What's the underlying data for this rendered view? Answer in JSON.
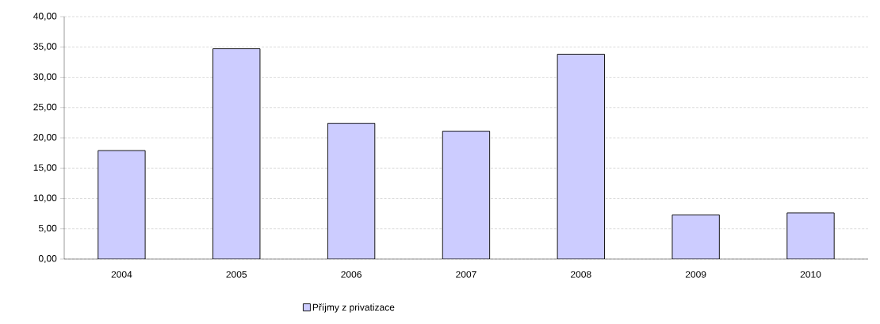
{
  "chart_data": {
    "type": "bar",
    "categories": [
      "2004",
      "2005",
      "2006",
      "2007",
      "2008",
      "2009",
      "2010"
    ],
    "series": [
      {
        "name": "Příjmy z privatizace",
        "color": "#ccccff",
        "values": [
          17.9,
          34.7,
          22.4,
          21.1,
          33.8,
          7.3,
          7.6
        ]
      }
    ],
    "ylim": [
      0,
      40
    ],
    "yticks": [
      {
        "value": 0,
        "label": "0,00"
      },
      {
        "value": 5,
        "label": "5,00"
      },
      {
        "value": 10,
        "label": "10,00"
      },
      {
        "value": 15,
        "label": "15,00"
      },
      {
        "value": 20,
        "label": "20,00"
      },
      {
        "value": 25,
        "label": "25,00"
      },
      {
        "value": 30,
        "label": "30,00"
      },
      {
        "value": 35,
        "label": "35,00"
      },
      {
        "value": 40,
        "label": "40,00"
      }
    ],
    "grid": "y",
    "legend": "bottom"
  }
}
